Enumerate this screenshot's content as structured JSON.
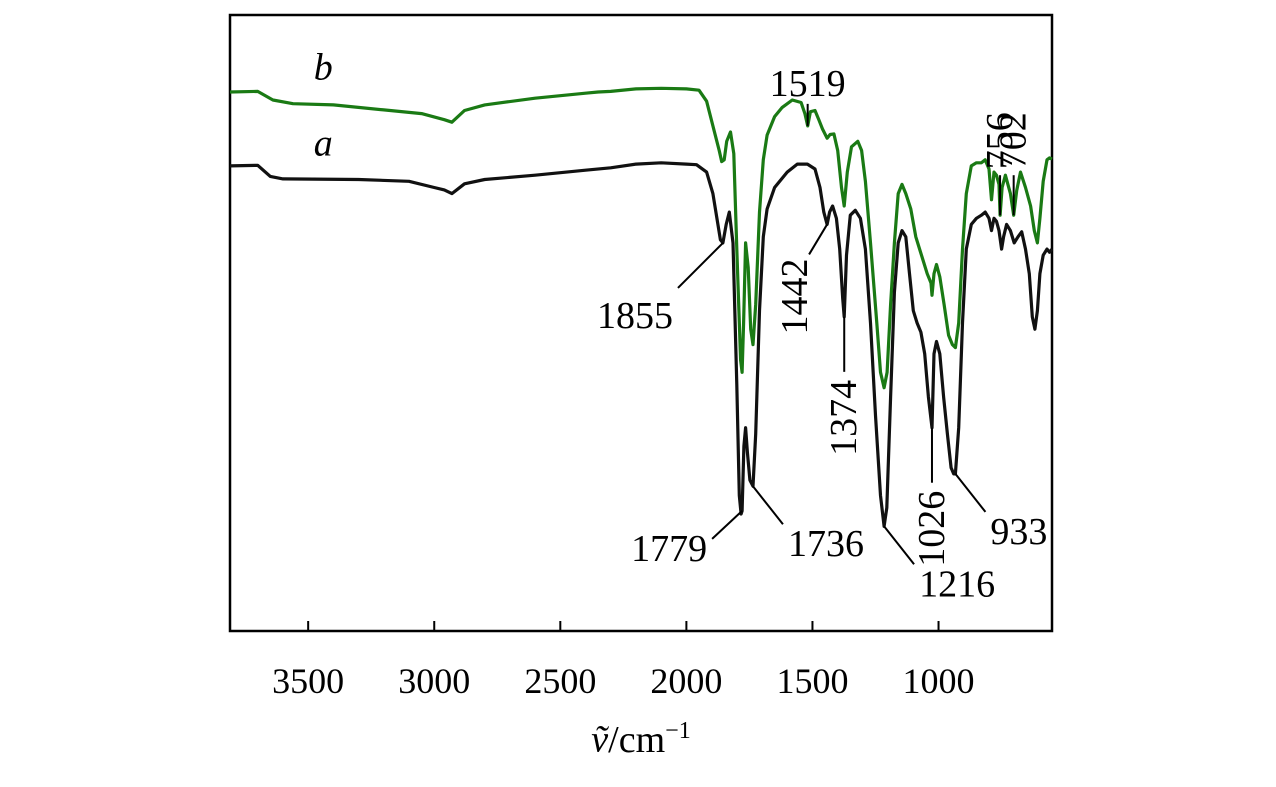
{
  "chart_data": {
    "type": "line",
    "title": "",
    "xlabel": "ṽ/cm⁻¹",
    "xlabel_parts": {
      "symbol": "ṽ",
      "unit": "/cm",
      "exponent": "−1"
    },
    "ylabel": "",
    "x_reversed": true,
    "xlim": [
      3810,
      550
    ],
    "ylim": [
      0,
      100
    ],
    "x_ticks": [
      3500,
      3000,
      2500,
      2000,
      1500,
      1000
    ],
    "x_tick_labels": [
      "3500",
      "3000",
      "2500",
      "2000",
      "1500",
      "1000"
    ],
    "y_ticks_shown": false,
    "grid": false,
    "series": [
      {
        "name": "b",
        "color": "#1a7a14",
        "points": [
          [
            3810,
            87.5
          ],
          [
            3700,
            87.6
          ],
          [
            3640,
            86.2
          ],
          [
            3560,
            85.6
          ],
          [
            3400,
            85.4
          ],
          [
            3200,
            84.6
          ],
          [
            3050,
            84.0
          ],
          [
            2960,
            83.0
          ],
          [
            2930,
            82.6
          ],
          [
            2880,
            84.5
          ],
          [
            2800,
            85.4
          ],
          [
            2600,
            86.5
          ],
          [
            2400,
            87.3
          ],
          [
            2350,
            87.5
          ],
          [
            2300,
            87.6
          ],
          [
            2200,
            88.0
          ],
          [
            2100,
            88.1
          ],
          [
            2000,
            88.0
          ],
          [
            1950,
            87.8
          ],
          [
            1920,
            86.0
          ],
          [
            1895,
            82.0
          ],
          [
            1870,
            78.0
          ],
          [
            1860,
            76.2
          ],
          [
            1850,
            76.5
          ],
          [
            1840,
            79.5
          ],
          [
            1825,
            81.0
          ],
          [
            1812,
            77.5
          ],
          [
            1800,
            62.0
          ],
          [
            1785,
            44.0
          ],
          [
            1779,
            42.0
          ],
          [
            1773,
            50.0
          ],
          [
            1765,
            63.0
          ],
          [
            1755,
            59.0
          ],
          [
            1745,
            49.0
          ],
          [
            1736,
            46.5
          ],
          [
            1725,
            53.0
          ],
          [
            1710,
            68.0
          ],
          [
            1695,
            76.5
          ],
          [
            1680,
            80.5
          ],
          [
            1650,
            83.5
          ],
          [
            1620,
            85.0
          ],
          [
            1580,
            86.2
          ],
          [
            1545,
            85.8
          ],
          [
            1530,
            84.0
          ],
          [
            1519,
            82.0
          ],
          [
            1508,
            84.3
          ],
          [
            1490,
            84.5
          ],
          [
            1475,
            83.0
          ],
          [
            1460,
            81.5
          ],
          [
            1442,
            80.0
          ],
          [
            1430,
            80.6
          ],
          [
            1415,
            80.7
          ],
          [
            1400,
            78.0
          ],
          [
            1385,
            72.0
          ],
          [
            1374,
            69.0
          ],
          [
            1362,
            74.5
          ],
          [
            1345,
            78.6
          ],
          [
            1320,
            79.5
          ],
          [
            1305,
            78.0
          ],
          [
            1290,
            73.0
          ],
          [
            1270,
            63.0
          ],
          [
            1245,
            50.0
          ],
          [
            1230,
            42.0
          ],
          [
            1216,
            39.5
          ],
          [
            1204,
            42.0
          ],
          [
            1190,
            53.0
          ],
          [
            1175,
            63.0
          ],
          [
            1160,
            71.0
          ],
          [
            1145,
            72.5
          ],
          [
            1130,
            71.0
          ],
          [
            1110,
            68.5
          ],
          [
            1090,
            64.0
          ],
          [
            1075,
            62.0
          ],
          [
            1060,
            60.0
          ],
          [
            1045,
            58.0
          ],
          [
            1030,
            56.5
          ],
          [
            1026,
            54.5
          ],
          [
            1018,
            58.0
          ],
          [
            1008,
            59.5
          ],
          [
            995,
            57.5
          ],
          [
            978,
            53.0
          ],
          [
            960,
            48.0
          ],
          [
            945,
            46.5
          ],
          [
            933,
            46.0
          ],
          [
            920,
            50.0
          ],
          [
            905,
            62.0
          ],
          [
            890,
            71.0
          ],
          [
            870,
            75.5
          ],
          [
            850,
            76.0
          ],
          [
            830,
            76.0
          ],
          [
            815,
            76.5
          ],
          [
            800,
            75.0
          ],
          [
            790,
            70.0
          ],
          [
            780,
            74.5
          ],
          [
            770,
            74.0
          ],
          [
            760,
            72.5
          ],
          [
            756,
            67.5
          ],
          [
            748,
            72.0
          ],
          [
            735,
            74.0
          ],
          [
            715,
            71.0
          ],
          [
            702,
            67.5
          ],
          [
            690,
            71.5
          ],
          [
            675,
            74.5
          ],
          [
            655,
            72.0
          ],
          [
            635,
            69.0
          ],
          [
            620,
            65.0
          ],
          [
            608,
            63.0
          ],
          [
            598,
            67.0
          ],
          [
            585,
            73.0
          ],
          [
            570,
            76.5
          ],
          [
            560,
            76.8
          ],
          [
            550,
            76.6
          ]
        ]
      },
      {
        "name": "a",
        "color": "#111111",
        "points": [
          [
            3810,
            75.5
          ],
          [
            3700,
            75.6
          ],
          [
            3650,
            73.8
          ],
          [
            3600,
            73.4
          ],
          [
            3300,
            73.3
          ],
          [
            3100,
            73.0
          ],
          [
            3000,
            72.0
          ],
          [
            2960,
            71.6
          ],
          [
            2930,
            71.0
          ],
          [
            2880,
            72.6
          ],
          [
            2800,
            73.3
          ],
          [
            2600,
            74.0
          ],
          [
            2400,
            74.8
          ],
          [
            2300,
            75.2
          ],
          [
            2200,
            75.8
          ],
          [
            2100,
            76.0
          ],
          [
            2000,
            75.8
          ],
          [
            1960,
            75.7
          ],
          [
            1920,
            74.5
          ],
          [
            1895,
            71.0
          ],
          [
            1875,
            66.0
          ],
          [
            1865,
            63.5
          ],
          [
            1855,
            63.0
          ],
          [
            1842,
            66.0
          ],
          [
            1830,
            68.0
          ],
          [
            1815,
            63.0
          ],
          [
            1800,
            40.0
          ],
          [
            1790,
            22.0
          ],
          [
            1783,
            19.0
          ],
          [
            1779,
            19.5
          ],
          [
            1772,
            30.0
          ],
          [
            1765,
            33.0
          ],
          [
            1758,
            29.0
          ],
          [
            1748,
            24.5
          ],
          [
            1736,
            23.5
          ],
          [
            1725,
            32.0
          ],
          [
            1710,
            52.0
          ],
          [
            1695,
            64.0
          ],
          [
            1680,
            68.5
          ],
          [
            1650,
            72.0
          ],
          [
            1600,
            74.5
          ],
          [
            1560,
            75.8
          ],
          [
            1520,
            75.8
          ],
          [
            1490,
            75.0
          ],
          [
            1470,
            72.0
          ],
          [
            1455,
            68.0
          ],
          [
            1442,
            66.0
          ],
          [
            1432,
            68.0
          ],
          [
            1420,
            69.0
          ],
          [
            1405,
            67.0
          ],
          [
            1392,
            62.0
          ],
          [
            1380,
            54.0
          ],
          [
            1374,
            51.0
          ],
          [
            1365,
            61.0
          ],
          [
            1350,
            67.5
          ],
          [
            1330,
            68.3
          ],
          [
            1310,
            67.0
          ],
          [
            1290,
            62.0
          ],
          [
            1270,
            50.0
          ],
          [
            1250,
            35.0
          ],
          [
            1230,
            22.0
          ],
          [
            1216,
            17.0
          ],
          [
            1205,
            20.0
          ],
          [
            1190,
            38.0
          ],
          [
            1175,
            55.0
          ],
          [
            1160,
            63.0
          ],
          [
            1145,
            65.0
          ],
          [
            1130,
            64.0
          ],
          [
            1115,
            58.0
          ],
          [
            1100,
            52.0
          ],
          [
            1085,
            50.0
          ],
          [
            1070,
            48.5
          ],
          [
            1055,
            45.0
          ],
          [
            1040,
            38.0
          ],
          [
            1026,
            33.0
          ],
          [
            1018,
            45.0
          ],
          [
            1008,
            47.0
          ],
          [
            995,
            45.0
          ],
          [
            980,
            38.0
          ],
          [
            965,
            32.0
          ],
          [
            950,
            26.5
          ],
          [
            940,
            25.5
          ],
          [
            933,
            25.5
          ],
          [
            920,
            33.0
          ],
          [
            905,
            50.0
          ],
          [
            890,
            62.0
          ],
          [
            870,
            66.0
          ],
          [
            850,
            67.0
          ],
          [
            830,
            67.5
          ],
          [
            815,
            68.0
          ],
          [
            800,
            67.0
          ],
          [
            790,
            65.0
          ],
          [
            780,
            67.0
          ],
          [
            770,
            66.5
          ],
          [
            760,
            65.0
          ],
          [
            750,
            62.0
          ],
          [
            742,
            64.0
          ],
          [
            730,
            66.0
          ],
          [
            715,
            65.0
          ],
          [
            700,
            63.0
          ],
          [
            685,
            64.0
          ],
          [
            670,
            64.8
          ],
          [
            655,
            62.0
          ],
          [
            640,
            58.0
          ],
          [
            628,
            51.0
          ],
          [
            618,
            49.0
          ],
          [
            608,
            52.0
          ],
          [
            598,
            58.0
          ],
          [
            585,
            61.0
          ],
          [
            570,
            62.0
          ],
          [
            560,
            61.5
          ],
          [
            550,
            62.0
          ]
        ]
      }
    ],
    "series_labels": [
      {
        "text": "b",
        "wn": 3440,
        "y": 89.5
      },
      {
        "text": "a",
        "wn": 3440,
        "y": 77.2
      }
    ],
    "annotations": [
      {
        "text": "1855",
        "wn": 1855,
        "y": 63.0,
        "anchor": "start-left"
      },
      {
        "text": "1779",
        "wn": 1779,
        "y": 19.5,
        "anchor": "down-left"
      },
      {
        "text": "1736",
        "wn": 1736,
        "y": 23.5,
        "anchor": "down-right"
      },
      {
        "text": "1519",
        "wn": 1519,
        "y": 82.0,
        "anchor": "up"
      },
      {
        "text": "1442",
        "wn": 1442,
        "y": 66.0,
        "anchor": "rotated-left"
      },
      {
        "text": "1374",
        "wn": 1374,
        "y": 51.0,
        "anchor": "rotated-down"
      },
      {
        "text": "1216",
        "wn": 1216,
        "y": 17.0,
        "anchor": "down-right"
      },
      {
        "text": "1026",
        "wn": 1026,
        "y": 33.0,
        "anchor": "rotated-down"
      },
      {
        "text": "933",
        "wn": 933,
        "y": 25.5,
        "anchor": "down-right"
      },
      {
        "text": "756",
        "wn": 756,
        "y": 67.5,
        "anchor": "rotated-up"
      },
      {
        "text": "702",
        "wn": 702,
        "y": 67.5,
        "anchor": "rotated-up"
      }
    ]
  }
}
